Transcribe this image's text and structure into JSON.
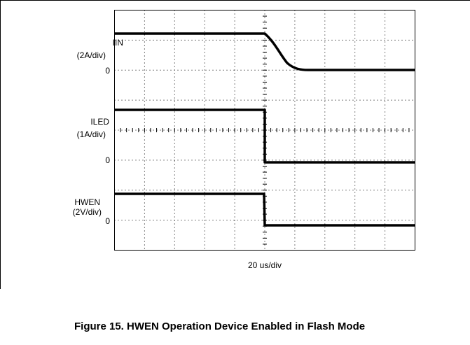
{
  "figure": {
    "channels": [
      {
        "name": "IIN",
        "scale": "(2A/div)",
        "zero": "0"
      },
      {
        "name": "ILED",
        "scale": "(1A/div)",
        "zero": "0"
      },
      {
        "name": "HWEN",
        "scale": "(2V/div)",
        "zero": "0"
      }
    ],
    "timebase": "20 us/div",
    "caption": "Figure 15. HWEN Operation Device Enabled in Flash Mode"
  }
}
